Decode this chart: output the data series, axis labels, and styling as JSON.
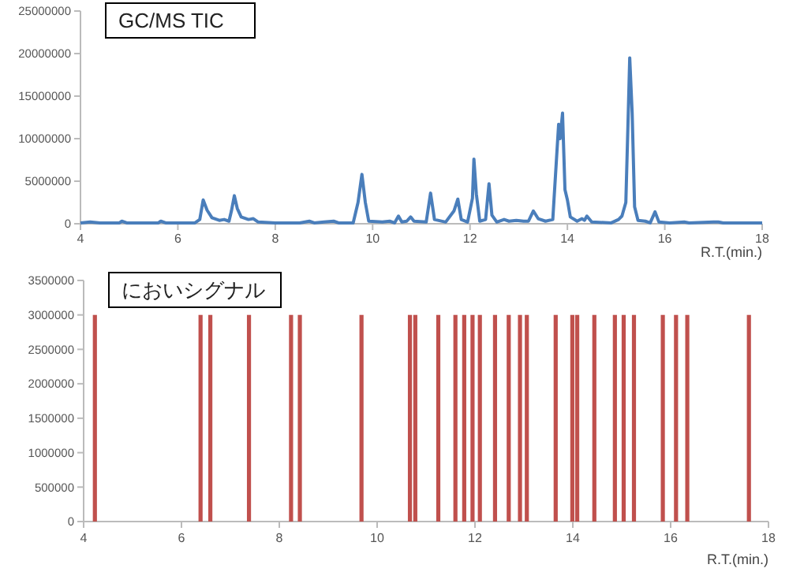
{
  "chart_data": [
    {
      "type": "line",
      "title": "GC/MS TIC",
      "xlabel": "R.T.(min.)",
      "xlim": [
        4,
        18
      ],
      "xticks": [
        4,
        6,
        8,
        10,
        12,
        14,
        16,
        18
      ],
      "ylim": [
        0,
        25000000
      ],
      "yticks": [
        0,
        5000000,
        10000000,
        15000000,
        20000000,
        25000000
      ],
      "marker": "none",
      "line_style": "solid",
      "x": [
        4.0,
        4.2,
        4.4,
        4.8,
        4.85,
        4.95,
        5.6,
        5.65,
        5.75,
        6.35,
        6.45,
        6.52,
        6.6,
        6.7,
        6.85,
        6.95,
        7.05,
        7.1,
        7.16,
        7.22,
        7.3,
        7.45,
        7.55,
        7.65,
        8.0,
        8.5,
        8.7,
        8.8,
        9.0,
        9.2,
        9.3,
        9.6,
        9.7,
        9.78,
        9.85,
        9.92,
        10.2,
        10.35,
        10.45,
        10.53,
        10.6,
        10.7,
        10.78,
        10.85,
        11.1,
        11.19,
        11.27,
        11.5,
        11.67,
        11.75,
        11.82,
        11.95,
        12.05,
        12.08,
        12.13,
        12.2,
        12.32,
        12.39,
        12.45,
        12.55,
        12.7,
        12.8,
        12.95,
        13.1,
        13.2,
        13.3,
        13.4,
        13.55,
        13.7,
        13.78,
        13.82,
        13.85,
        13.9,
        13.95,
        14.0,
        14.06,
        14.2,
        14.3,
        14.35,
        14.4,
        14.5,
        14.9,
        15.05,
        15.12,
        15.2,
        15.25,
        15.28,
        15.33,
        15.38,
        15.45,
        15.6,
        15.7,
        15.8,
        15.88,
        16.1,
        16.4,
        16.5,
        17.0,
        17.1,
        17.2,
        18.0
      ],
      "series": [
        {
          "color": "#4a7ebb",
          "values": [
            100000,
            200000,
            100000,
            100000,
            300000,
            100000,
            100000,
            300000,
            100000,
            100000,
            500000,
            2800000,
            1600000,
            700000,
            400000,
            500000,
            300000,
            1500000,
            3300000,
            1800000,
            800000,
            500000,
            600000,
            200000,
            100000,
            100000,
            300000,
            100000,
            200000,
            300000,
            100000,
            100000,
            2500000,
            5800000,
            2500000,
            300000,
            200000,
            300000,
            100000,
            900000,
            200000,
            300000,
            800000,
            300000,
            200000,
            3600000,
            500000,
            200000,
            1500000,
            2900000,
            500000,
            200000,
            3000000,
            7600000,
            3500000,
            300000,
            500000,
            4700000,
            1000000,
            200000,
            500000,
            300000,
            400000,
            300000,
            300000,
            1500000,
            600000,
            300000,
            500000,
            8000000,
            11700000,
            10000000,
            13000000,
            4000000,
            2800000,
            800000,
            300000,
            600000,
            400000,
            900000,
            200000,
            100000,
            500000,
            900000,
            2500000,
            13000000,
            19500000,
            13000000,
            2000000,
            400000,
            300000,
            100000,
            1400000,
            200000,
            100000,
            200000,
            100000,
            200000,
            200000,
            100000,
            100000
          ]
        }
      ]
    },
    {
      "type": "bar",
      "title": "においシグナル",
      "xlabel": "R.T.(min.)",
      "xlim": [
        4,
        18
      ],
      "xticks": [
        4,
        6,
        8,
        10,
        12,
        14,
        16,
        18
      ],
      "ylim": [
        0,
        3500000
      ],
      "yticks": [
        0,
        500000,
        1000000,
        1500000,
        2000000,
        2500000,
        3000000,
        3500000
      ],
      "x": [
        4.23,
        6.39,
        6.59,
        7.38,
        8.24,
        8.42,
        9.68,
        10.67,
        10.78,
        11.25,
        11.6,
        11.78,
        11.95,
        12.1,
        12.41,
        12.69,
        12.92,
        13.06,
        13.65,
        13.99,
        14.09,
        14.44,
        14.86,
        15.04,
        15.25,
        15.84,
        16.11,
        16.34,
        17.6
      ],
      "series": [
        {
          "color": "#c0504d",
          "values": [
            3000000,
            3000000,
            3000000,
            3000000,
            3000000,
            3000000,
            3000000,
            3000000,
            3000000,
            3000000,
            3000000,
            3000000,
            3000000,
            3000000,
            3000000,
            3000000,
            3000000,
            3000000,
            3000000,
            3000000,
            3000000,
            3000000,
            3000000,
            3000000,
            3000000,
            3000000,
            3000000,
            3000000,
            3000000
          ]
        }
      ]
    }
  ]
}
